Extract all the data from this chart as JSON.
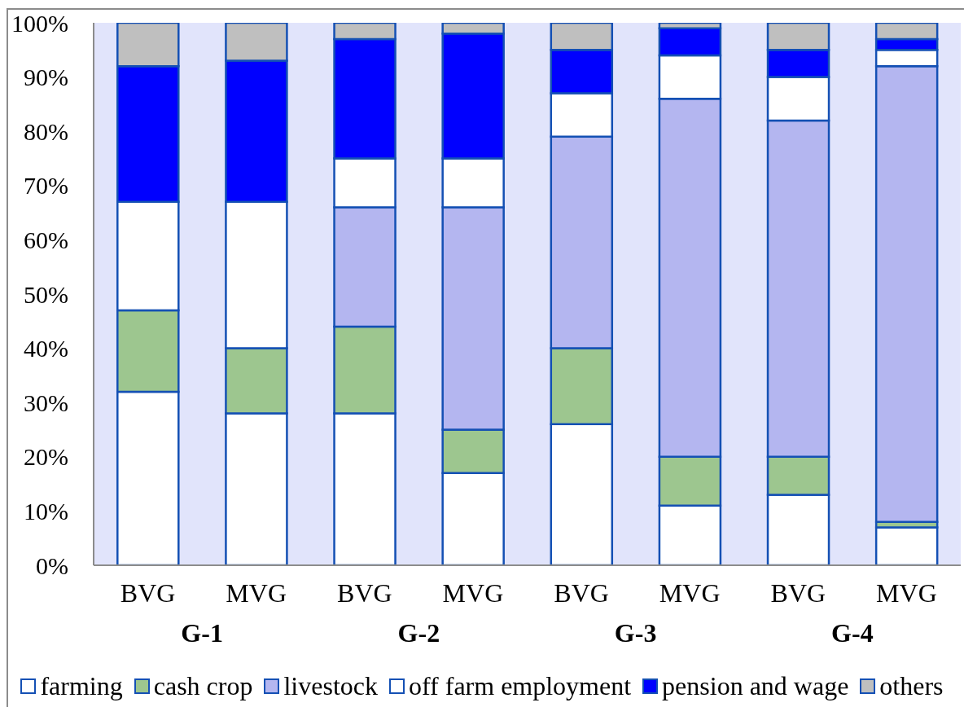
{
  "chart_data": {
    "type": "bar",
    "stacked": true,
    "categories": [
      "BVG",
      "MVG",
      "BVG",
      "MVG",
      "BVG",
      "MVG",
      "BVG",
      "MVG"
    ],
    "series": [
      {
        "name": "farming",
        "color": "#ffffff",
        "values": [
          32,
          28,
          28,
          17,
          26,
          11,
          13,
          7
        ]
      },
      {
        "name": "cash crop",
        "color": "#9dc68f",
        "values": [
          15,
          12,
          16,
          8,
          14,
          9,
          7,
          1
        ]
      },
      {
        "name": "livestock",
        "color": "#b4b6f0",
        "values": [
          0,
          0,
          22,
          41,
          39,
          66,
          62,
          84
        ]
      },
      {
        "name": "off farm employment",
        "color": "#ffffff",
        "values": [
          20,
          27,
          9,
          9,
          8,
          8,
          8,
          3
        ]
      },
      {
        "name": "pension and wage",
        "color": "#0000ff",
        "values": [
          25,
          26,
          22,
          23,
          8,
          5,
          5,
          2
        ]
      },
      {
        "name": "others",
        "color": "#bfbfbf",
        "values": [
          8,
          7,
          3,
          2,
          5,
          1,
          5,
          3
        ]
      }
    ],
    "ylim": [
      0,
      100
    ],
    "yticks": [
      {
        "value": 0,
        "label": "0%"
      },
      {
        "value": 10,
        "label": "10%"
      },
      {
        "value": 20,
        "label": "20%"
      },
      {
        "value": 30,
        "label": "30%"
      },
      {
        "value": 40,
        "label": "40%"
      },
      {
        "value": 50,
        "label": "50%"
      },
      {
        "value": 60,
        "label": "60%"
      },
      {
        "value": 70,
        "label": "70%"
      },
      {
        "value": 80,
        "label": "80%"
      },
      {
        "value": 90,
        "label": "90%"
      },
      {
        "value": 100,
        "label": "100%"
      }
    ],
    "annotations": [
      "G-1",
      "G-2",
      "G-3",
      "G-4"
    ],
    "legend": "bottom"
  }
}
